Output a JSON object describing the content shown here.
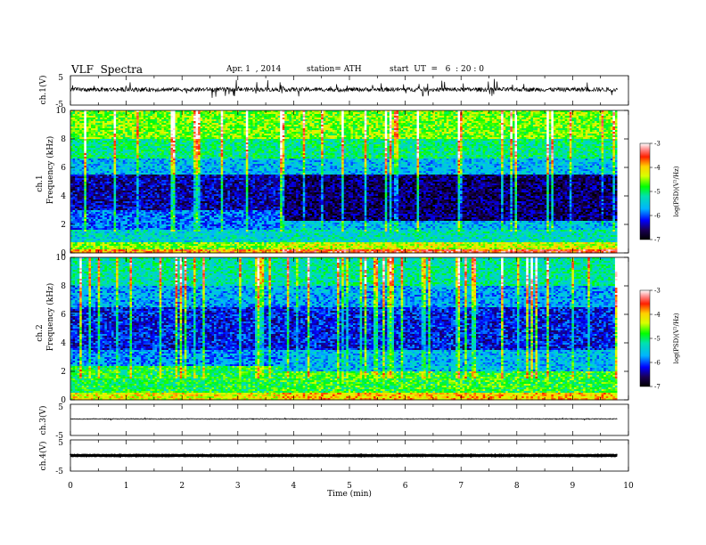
{
  "header": {
    "title": "VLF  Spectra",
    "date": "Apr. 1  , 2014",
    "station": "station= ATH",
    "start": "start  UT  =   6  : 20 : 0"
  },
  "chart_data": [
    {
      "type": "line",
      "title": "",
      "ylabel": "ch.1(V)",
      "ylim": [
        -5,
        5
      ],
      "yticks": [
        "5",
        "-5"
      ],
      "x_range_min": [
        0,
        9.8
      ],
      "trace": "noisy waveform centred slightly above 0 V, amplitude about 1 V with frequent spikes",
      "color": "#000000"
    },
    {
      "type": "heatmap",
      "title": "",
      "xlabel": "Time  (min)",
      "ylabel": "Frequency  (kHz)",
      "channel_label": "ch.1",
      "ylim": [
        0,
        10
      ],
      "yticks": [
        "0",
        "2",
        "4",
        "6",
        "8",
        "10"
      ],
      "x_range_min": [
        0,
        9.8
      ],
      "transition_min": 3.8,
      "bands_before": [
        {
          "f": [
            0,
            0.3
          ],
          "level": -3.8
        },
        {
          "f": [
            0.3,
            0.8
          ],
          "level": -4.6
        },
        {
          "f": [
            0.8,
            1.6
          ],
          "level": -5.4
        },
        {
          "f": [
            1.6,
            3.0
          ],
          "level": -5.9
        },
        {
          "f": [
            3.0,
            5.5
          ],
          "level": -6.4
        },
        {
          "f": [
            5.5,
            6.6
          ],
          "level": -5.6
        },
        {
          "f": [
            6.6,
            8.0
          ],
          "level": -5.1
        },
        {
          "f": [
            8.0,
            10.0
          ],
          "level": -4.6
        }
      ],
      "bands_after": [
        {
          "f": [
            0,
            0.3
          ],
          "level": -3.5
        },
        {
          "f": [
            0.3,
            0.8
          ],
          "level": -4.3
        },
        {
          "f": [
            0.8,
            1.6
          ],
          "level": -5.3
        },
        {
          "f": [
            1.6,
            2.2
          ],
          "level": -5.6
        },
        {
          "f": [
            2.2,
            5.5
          ],
          "level": -6.6
        },
        {
          "f": [
            5.5,
            6.6
          ],
          "level": -5.6
        },
        {
          "f": [
            6.6,
            8.0
          ],
          "level": -5.1
        },
        {
          "f": [
            8.0,
            10.0
          ],
          "level": -4.6
        }
      ],
      "colorbar": {
        "label": "log(PSD)(V²/Hz)",
        "range": [
          -7,
          -3
        ],
        "ticks": [
          "-3",
          "-4",
          "-5",
          "-6",
          "-7"
        ]
      }
    },
    {
      "type": "heatmap",
      "title": "",
      "ylabel": "Frequency  (kHz)",
      "channel_label": "ch.2",
      "ylim": [
        0,
        10
      ],
      "yticks": [
        "0",
        "2",
        "4",
        "6",
        "8",
        "10"
      ],
      "x_range_min": [
        0,
        9.8
      ],
      "transition_min": 3.8,
      "bands_before": [
        {
          "f": [
            0,
            0.5
          ],
          "level": -4.2
        },
        {
          "f": [
            0.5,
            2.4
          ],
          "level": -4.9
        },
        {
          "f": [
            2.4,
            3.5
          ],
          "level": -5.8
        },
        {
          "f": [
            3.5,
            6.5
          ],
          "level": -6.2
        },
        {
          "f": [
            6.5,
            8.0
          ],
          "level": -5.7
        },
        {
          "f": [
            8.0,
            10.0
          ],
          "level": -5.2
        }
      ],
      "bands_after": [
        {
          "f": [
            0,
            0.5
          ],
          "level": -4.0
        },
        {
          "f": [
            0.5,
            2.0
          ],
          "level": -4.8
        },
        {
          "f": [
            2.0,
            3.5
          ],
          "level": -5.6
        },
        {
          "f": [
            3.5,
            6.5
          ],
          "level": -6.2
        },
        {
          "f": [
            6.5,
            8.0
          ],
          "level": -5.7
        },
        {
          "f": [
            8.0,
            10.0
          ],
          "level": -5.2
        }
      ],
      "colorbar": {
        "label": "log(PSD)(V²/Hz)",
        "range": [
          -7,
          -3
        ],
        "ticks": [
          "-3",
          "-4",
          "-5",
          "-6",
          "-7"
        ]
      }
    },
    {
      "type": "line",
      "title": "",
      "ylabel": "ch.3(V)",
      "ylim": [
        -5,
        5
      ],
      "yticks": [
        "5",
        "-5"
      ],
      "x_range_min": [
        0,
        9.8
      ],
      "trace": "nearly flat line just above 0 V with small noise",
      "color": "#000000"
    },
    {
      "type": "line",
      "title": "",
      "ylabel": "ch.4(V)",
      "ylim": [
        -5,
        5
      ],
      "yticks": [
        "5",
        "-5"
      ],
      "x_range_min": [
        0,
        9.8
      ],
      "trace": "thick flat trace at about 0 V",
      "color": "#000000"
    }
  ],
  "x_axis": {
    "label": "Time  (min)",
    "range": [
      0,
      10
    ],
    "ticks": [
      "0",
      "1",
      "2",
      "3",
      "4",
      "5",
      "6",
      "7",
      "8",
      "9",
      "10"
    ]
  }
}
